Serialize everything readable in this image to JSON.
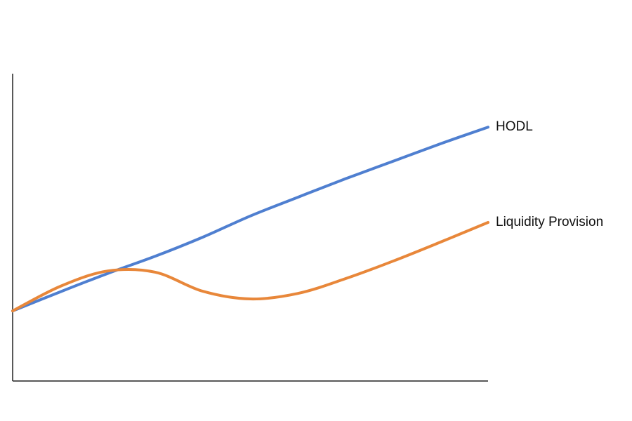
{
  "chart_data": {
    "type": "line",
    "categories": [
      null,
      null,
      null,
      null,
      null,
      null,
      null,
      null,
      null,
      null,
      null
    ],
    "series": [
      {
        "name": "HODL",
        "color": "#4f7fd0",
        "values": [
          22.8,
          29,
          35,
          40.6,
          46.8,
          53.7,
          59.8,
          65.8,
          71.5,
          77.2,
          82.6
        ]
      },
      {
        "name": "Liquidity Provision",
        "color": "#e8873a",
        "values": [
          22.8,
          30.8,
          35.8,
          35.4,
          29.2,
          26.7,
          28.5,
          33.3,
          39,
          45.2,
          51.6
        ]
      }
    ],
    "ylim": [
      0,
      100
    ],
    "smooth": true
  }
}
